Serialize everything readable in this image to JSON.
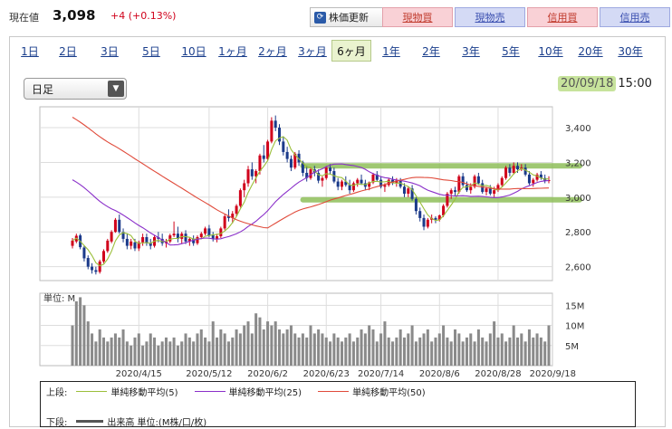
{
  "header": {
    "price_label": "現在値",
    "price_value": "3,098",
    "price_change": "+4 (+0.13%)",
    "refresh_label": "株価更新",
    "buttons": [
      "現物買",
      "現物売",
      "信用買",
      "信用売"
    ]
  },
  "tabs": [
    "1日",
    "2日",
    "3日",
    "5日",
    "10日",
    "1ヶ月",
    "2ヶ月",
    "3ヶ月",
    "6ヶ月",
    "1年",
    "2年",
    "3年",
    "5年",
    "10年",
    "20年",
    "30年"
  ],
  "active_tab": "6ヶ月",
  "period_select": {
    "value": "日足"
  },
  "datetime": {
    "date": "20/09/18",
    "time": "15:00"
  },
  "colors": {
    "up": "#d0021b",
    "down": "#1b3a8a",
    "ma5": "#9bbf3a",
    "ma25": "#8a2fc9",
    "ma50": "#e04a3a",
    "highlight": "#8fbf5a",
    "volume": "#8a8a8a"
  },
  "legend": {
    "upper_label": "上段:",
    "lower_label": "下段:",
    "items": [
      "単純移動平均(5)",
      "単純移動平均(25)",
      "単純移動平均(50)"
    ],
    "volume_item": "出来高 単位:(M株/口/枚)"
  },
  "volume_unit_label": "単位: M",
  "chart_data": {
    "type": "candlestick",
    "title": "",
    "yticks": [
      "3,400",
      "3,200",
      "3,000",
      "2,800",
      "2,600"
    ],
    "ytick_values": [
      3400,
      3200,
      3000,
      2800,
      2600
    ],
    "ylim": [
      2520,
      3520
    ],
    "volume_yticks": [
      "15M",
      "10M",
      "5M"
    ],
    "volume_ytick_values": [
      15,
      10,
      5
    ],
    "volume_ylim": [
      0,
      18
    ],
    "xticks": [
      "2020/4/15",
      "2020/5/12",
      "2020/6/2",
      "2020/6/23",
      "2020/7/14",
      "2020/8/6",
      "2020/8/28",
      "2020/9/18"
    ],
    "xtick_index": [
      17,
      35,
      50,
      65,
      79,
      94,
      109,
      123
    ],
    "ohlc": [
      [
        2720,
        2765,
        2705,
        2750
      ],
      [
        2745,
        2790,
        2735,
        2778
      ],
      [
        2780,
        2790,
        2700,
        2712
      ],
      [
        2710,
        2720,
        2630,
        2648
      ],
      [
        2650,
        2665,
        2585,
        2600
      ],
      [
        2600,
        2620,
        2560,
        2580
      ],
      [
        2580,
        2600,
        2555,
        2570
      ],
      [
        2570,
        2640,
        2560,
        2630
      ],
      [
        2630,
        2700,
        2620,
        2690
      ],
      [
        2690,
        2760,
        2680,
        2750
      ],
      [
        2745,
        2810,
        2735,
        2800
      ],
      [
        2800,
        2880,
        2795,
        2870
      ],
      [
        2870,
        2900,
        2790,
        2800
      ],
      [
        2800,
        2820,
        2740,
        2760
      ],
      [
        2760,
        2790,
        2700,
        2720
      ],
      [
        2720,
        2760,
        2700,
        2745
      ],
      [
        2740,
        2760,
        2690,
        2705
      ],
      [
        2705,
        2750,
        2690,
        2740
      ],
      [
        2740,
        2790,
        2720,
        2770
      ],
      [
        2770,
        2790,
        2720,
        2735
      ],
      [
        2735,
        2760,
        2700,
        2720
      ],
      [
        2720,
        2780,
        2710,
        2770
      ],
      [
        2770,
        2800,
        2740,
        2760
      ],
      [
        2760,
        2790,
        2720,
        2735
      ],
      [
        2735,
        2760,
        2710,
        2745
      ],
      [
        2745,
        2790,
        2735,
        2780
      ],
      [
        2780,
        2860,
        2770,
        2790
      ],
      [
        2790,
        2830,
        2740,
        2760
      ],
      [
        2760,
        2800,
        2730,
        2790
      ],
      [
        2790,
        2810,
        2730,
        2745
      ],
      [
        2745,
        2770,
        2720,
        2760
      ],
      [
        2760,
        2780,
        2720,
        2735
      ],
      [
        2735,
        2780,
        2725,
        2770
      ],
      [
        2770,
        2800,
        2760,
        2790
      ],
      [
        2790,
        2830,
        2780,
        2820
      ],
      [
        2820,
        2840,
        2770,
        2780
      ],
      [
        2780,
        2800,
        2745,
        2760
      ],
      [
        2760,
        2790,
        2740,
        2775
      ],
      [
        2775,
        2830,
        2765,
        2820
      ],
      [
        2820,
        2900,
        2810,
        2890
      ],
      [
        2890,
        2930,
        2860,
        2880
      ],
      [
        2880,
        2920,
        2850,
        2905
      ],
      [
        2905,
        2960,
        2890,
        2950
      ],
      [
        2950,
        3050,
        2940,
        3040
      ],
      [
        3040,
        3100,
        3000,
        3080
      ],
      [
        3080,
        3180,
        3060,
        3160
      ],
      [
        3160,
        3200,
        3100,
        3120
      ],
      [
        3120,
        3160,
        3080,
        3150
      ],
      [
        3150,
        3250,
        3130,
        3240
      ],
      [
        3240,
        3300,
        3200,
        3220
      ],
      [
        3220,
        3330,
        3210,
        3320
      ],
      [
        3320,
        3460,
        3310,
        3440
      ],
      [
        3440,
        3470,
        3380,
        3400
      ],
      [
        3400,
        3420,
        3300,
        3320
      ],
      [
        3320,
        3350,
        3240,
        3260
      ],
      [
        3260,
        3290,
        3200,
        3220
      ],
      [
        3220,
        3240,
        3150,
        3170
      ],
      [
        3170,
        3260,
        3160,
        3250
      ],
      [
        3250,
        3270,
        3180,
        3200
      ],
      [
        3200,
        3210,
        3120,
        3140
      ],
      [
        3140,
        3180,
        3090,
        3110
      ],
      [
        3110,
        3170,
        3100,
        3160
      ],
      [
        3160,
        3180,
        3120,
        3140
      ],
      [
        3140,
        3160,
        3080,
        3095
      ],
      [
        3095,
        3120,
        3060,
        3110
      ],
      [
        3110,
        3180,
        3100,
        3170
      ],
      [
        3170,
        3190,
        3130,
        3150
      ],
      [
        3150,
        3170,
        3080,
        3090
      ],
      [
        3090,
        3110,
        3040,
        3060
      ],
      [
        3060,
        3100,
        3040,
        3090
      ],
      [
        3090,
        3120,
        3060,
        3070
      ],
      [
        3070,
        3100,
        3020,
        3040
      ],
      [
        3040,
        3090,
        3030,
        3080
      ],
      [
        3080,
        3110,
        3060,
        3100
      ],
      [
        3100,
        3130,
        3070,
        3080
      ],
      [
        3080,
        3100,
        3040,
        3060
      ],
      [
        3060,
        3090,
        3040,
        3085
      ],
      [
        3085,
        3140,
        3075,
        3130
      ],
      [
        3130,
        3150,
        3090,
        3100
      ],
      [
        3100,
        3120,
        3050,
        3060
      ],
      [
        3060,
        3080,
        3030,
        3070
      ],
      [
        3070,
        3110,
        3060,
        3100
      ],
      [
        3100,
        3120,
        3070,
        3080
      ],
      [
        3080,
        3110,
        3060,
        3095
      ],
      [
        3095,
        3110,
        3050,
        3060
      ],
      [
        3060,
        3080,
        3000,
        3020
      ],
      [
        3020,
        3060,
        3000,
        3050
      ],
      [
        3050,
        3070,
        2980,
        2990
      ],
      [
        2990,
        3000,
        2900,
        2920
      ],
      [
        2920,
        2940,
        2860,
        2880
      ],
      [
        2880,
        2900,
        2810,
        2830
      ],
      [
        2830,
        2880,
        2820,
        2870
      ],
      [
        2870,
        2900,
        2850,
        2880
      ],
      [
        2880,
        2890,
        2850,
        2870
      ],
      [
        2870,
        2900,
        2860,
        2895
      ],
      [
        2895,
        2960,
        2885,
        2950
      ],
      [
        2950,
        3030,
        2940,
        3020
      ],
      [
        3020,
        3050,
        2990,
        3040
      ],
      [
        3040,
        3060,
        3010,
        3030
      ],
      [
        3030,
        3130,
        3020,
        3120
      ],
      [
        3120,
        3140,
        3060,
        3070
      ],
      [
        3070,
        3090,
        3030,
        3040
      ],
      [
        3040,
        3080,
        3020,
        3060
      ],
      [
        3060,
        3130,
        3050,
        3120
      ],
      [
        3120,
        3140,
        3070,
        3080
      ],
      [
        3080,
        3100,
        3020,
        3030
      ],
      [
        3030,
        3060,
        3010,
        3050
      ],
      [
        3050,
        3070,
        3010,
        3020
      ],
      [
        3020,
        3060,
        3000,
        3040
      ],
      [
        3040,
        3080,
        3030,
        3070
      ],
      [
        3070,
        3120,
        3060,
        3110
      ],
      [
        3110,
        3180,
        3100,
        3170
      ],
      [
        3170,
        3190,
        3120,
        3140
      ],
      [
        3140,
        3200,
        3130,
        3180
      ],
      [
        3180,
        3200,
        3140,
        3160
      ],
      [
        3160,
        3190,
        3150,
        3170
      ],
      [
        3170,
        3190,
        3120,
        3130
      ],
      [
        3130,
        3150,
        3070,
        3080
      ],
      [
        3080,
        3110,
        3060,
        3100
      ],
      [
        3100,
        3140,
        3090,
        3130
      ],
      [
        3130,
        3150,
        3100,
        3110
      ],
      [
        3110,
        3130,
        3080,
        3094
      ],
      [
        3094,
        3120,
        3080,
        3098
      ]
    ],
    "volume": [
      10,
      16,
      17,
      15,
      11,
      8,
      6,
      9,
      7,
      6,
      7,
      8,
      7,
      9,
      6,
      5,
      7,
      8,
      5,
      6,
      8,
      7,
      5,
      6,
      7,
      6,
      7,
      5,
      6,
      8,
      7,
      6,
      8,
      9,
      7,
      6,
      11,
      7,
      9,
      8,
      6,
      7,
      9,
      8,
      10,
      11,
      8,
      13,
      12,
      9,
      11,
      10,
      11,
      9,
      8,
      9,
      10,
      8,
      7,
      8,
      7,
      10,
      8,
      9,
      8,
      7,
      6,
      8,
      7,
      6,
      7,
      8,
      6,
      7,
      9,
      8,
      10,
      9,
      6,
      8,
      11,
      7,
      6,
      7,
      9,
      7,
      8,
      10,
      6,
      7,
      8,
      9,
      6,
      7,
      8,
      10,
      7,
      6,
      9,
      8,
      6,
      7,
      8,
      6,
      9,
      7,
      6,
      8,
      11,
      7,
      8,
      6,
      7,
      10,
      7,
      8,
      6,
      9,
      7,
      8,
      7,
      6,
      10
    ],
    "resistance_level": 3180,
    "support_level": 2985
  }
}
